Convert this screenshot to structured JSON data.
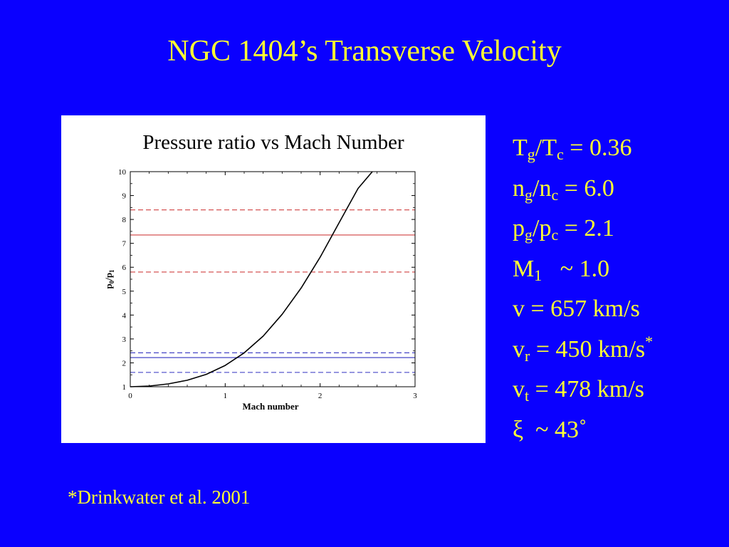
{
  "title": "NGC 1404’s Transverse Velocity",
  "params": {
    "tg_tc": {
      "a": "T",
      "a_sub": "g",
      "b": "/T",
      "b_sub": "c",
      "rest": " = 0.36"
    },
    "ng_nc": {
      "a": "n",
      "a_sub": "g",
      "b": "/n",
      "b_sub": "c",
      "rest": " = 6.0"
    },
    "pg_pc": {
      "a": "p",
      "a_sub": "g",
      "b": "/p",
      "b_sub": "c",
      "rest": " = 2.1"
    },
    "m1": {
      "a": "M",
      "a_sub": "1",
      "rest": "   ~ 1.0"
    },
    "v": {
      "text": "v = 657 km/s"
    },
    "vr": {
      "a": "v",
      "a_sub": "r",
      "rest": " = 450 km/s",
      "sup": "*"
    },
    "vt": {
      "a": "v",
      "a_sub": "t",
      "rest": " = 478 km/s"
    },
    "xi": {
      "text": "ξ  ~ 43˚"
    }
  },
  "footnote": "*Drinkwater et al. 2001",
  "chart_data": {
    "type": "line",
    "title": "Pressure ratio vs Mach Number",
    "xlabel": "Mach number",
    "ylabel_main": "p",
    "ylabel_sub1": "0",
    "ylabel_slash": "/p",
    "ylabel_sub2": "1",
    "xlim": [
      0,
      3
    ],
    "ylim": [
      1,
      10
    ],
    "xticks": [
      "0",
      "1",
      "2",
      "3"
    ],
    "yticks": [
      "1",
      "2",
      "3",
      "4",
      "5",
      "6",
      "7",
      "8",
      "9",
      "10"
    ],
    "grid": false,
    "series": [
      {
        "color": "#000000",
        "style": "solid",
        "x": [
          0,
          0.2,
          0.4,
          0.6,
          0.8,
          1.0,
          1.2,
          1.4,
          1.6,
          1.8,
          2.0,
          2.2,
          2.4,
          2.55
        ],
        "y": [
          1.0,
          1.03,
          1.12,
          1.27,
          1.52,
          1.89,
          2.42,
          3.12,
          4.03,
          5.13,
          6.42,
          7.86,
          9.3,
          10.0
        ]
      }
    ],
    "hlines": [
      {
        "y": 8.4,
        "color": "#d04040",
        "style": "dashed"
      },
      {
        "y": 7.35,
        "color": "#d04040",
        "style": "solid"
      },
      {
        "y": 5.8,
        "color": "#d04040",
        "style": "dashed"
      },
      {
        "y": 2.42,
        "color": "#3030c0",
        "style": "dashed"
      },
      {
        "y": 2.22,
        "color": "#3030c0",
        "style": "solid"
      },
      {
        "y": 1.6,
        "color": "#3030c0",
        "style": "dashed"
      }
    ]
  }
}
